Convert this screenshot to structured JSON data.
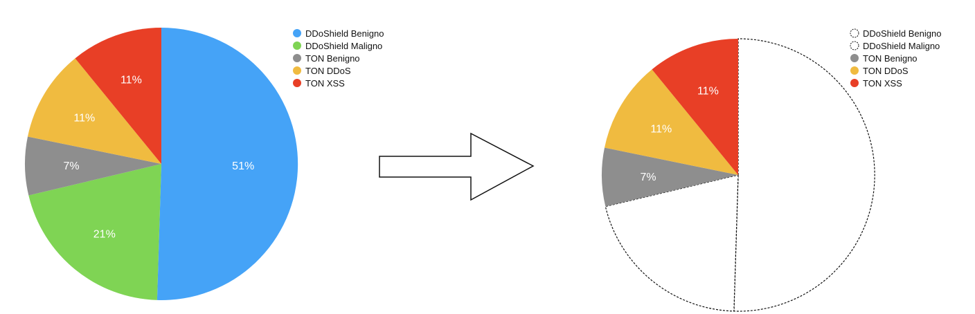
{
  "chart_data": [
    {
      "type": "pie",
      "title": "",
      "series": [
        {
          "name": "DDoShield Benigno",
          "value": 51,
          "label": "51%",
          "color": "#45a3f7",
          "visible": true
        },
        {
          "name": "DDoShield Maligno",
          "value": 21,
          "label": "21%",
          "color": "#7fd454",
          "visible": true
        },
        {
          "name": "TON Benigno",
          "value": 7,
          "label": "7%",
          "color": "#8e8e8e",
          "visible": true
        },
        {
          "name": "TON DDoS",
          "value": 11,
          "label": "11%",
          "color": "#f0bb40",
          "visible": true
        },
        {
          "name": "TON XSS",
          "value": 11,
          "label": "11%",
          "color": "#e83f26",
          "visible": true
        }
      ],
      "legend_position": "top-right"
    },
    {
      "type": "pie",
      "title": "",
      "series": [
        {
          "name": "DDoShield Benigno",
          "value": 51,
          "label": "",
          "color": "#ffffff",
          "visible": false
        },
        {
          "name": "DDoShield Maligno",
          "value": 21,
          "label": "",
          "color": "#ffffff",
          "visible": false
        },
        {
          "name": "TON Benigno",
          "value": 7,
          "label": "7%",
          "color": "#8e8e8e",
          "visible": true
        },
        {
          "name": "TON DDoS",
          "value": 11,
          "label": "11%",
          "color": "#f0bb40",
          "visible": true
        },
        {
          "name": "TON XSS",
          "value": 11,
          "label": "11%",
          "color": "#e83f26",
          "visible": true
        }
      ],
      "legend_position": "top-right"
    }
  ],
  "transition_icon": "right-arrow-icon"
}
